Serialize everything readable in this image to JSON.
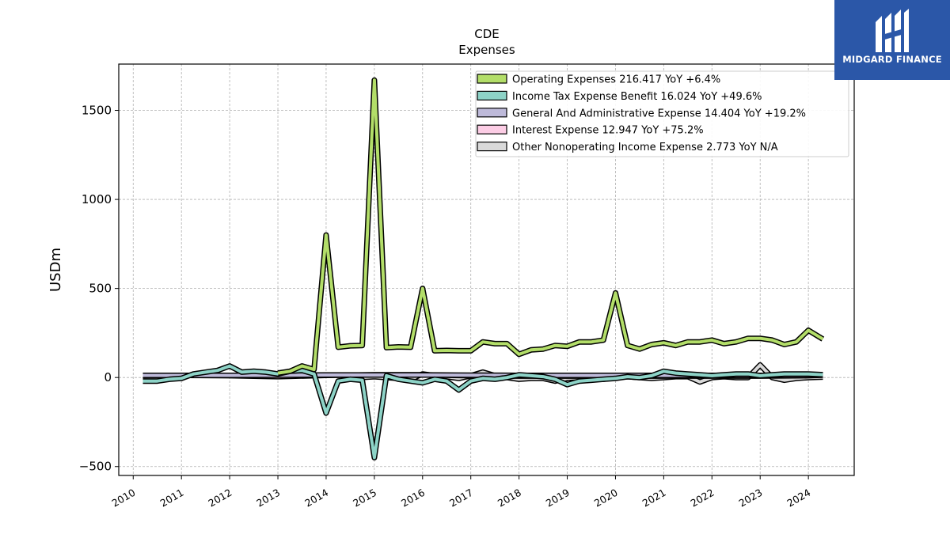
{
  "chart_data": {
    "type": "line",
    "title": "CDE",
    "subtitle": "Expenses",
    "ylabel": "USDm",
    "xlabel": "",
    "xlim": [
      2009.7,
      2024.95
    ],
    "ylim": [
      -550,
      1760
    ],
    "yticks": [
      -500,
      0,
      500,
      1000,
      1500
    ],
    "ytick_labels": [
      "−500",
      "0",
      "500",
      "1000",
      "1500"
    ],
    "xticks": [
      2010,
      2011,
      2012,
      2013,
      2014,
      2015,
      2016,
      2017,
      2018,
      2019,
      2020,
      2021,
      2022,
      2023,
      2024
    ],
    "xtick_labels": [
      "2010",
      "2011",
      "2012",
      "2013",
      "2014",
      "2015",
      "2016",
      "2017",
      "2018",
      "2019",
      "2020",
      "2021",
      "2022",
      "2023",
      "2024"
    ],
    "grid": true,
    "legend_position": "top-right",
    "series": [
      {
        "name": "Operating Expenses",
        "legend": "Operating Expenses  216.417 YoY +6.4%",
        "color": "#b3de69",
        "x": [
          2013.0,
          2013.25,
          2013.5,
          2013.75,
          2014.0,
          2014.25,
          2014.5,
          2014.75,
          2015.0,
          2015.25,
          2015.5,
          2015.75,
          2016.0,
          2016.25,
          2016.5,
          2016.75,
          2017.0,
          2017.25,
          2017.5,
          2017.75,
          2018.0,
          2018.25,
          2018.5,
          2018.75,
          2019.0,
          2019.25,
          2019.5,
          2019.75,
          2020.0,
          2020.25,
          2020.5,
          2020.75,
          2021.0,
          2021.25,
          2021.5,
          2021.75,
          2022.0,
          2022.25,
          2022.5,
          2022.75,
          2023.0,
          2023.25,
          2023.5,
          2023.75,
          2024.0,
          2024.3
        ],
        "y": [
          25,
          35,
          65,
          45,
          800,
          170,
          178,
          180,
          1670,
          168,
          172,
          170,
          500,
          150,
          152,
          150,
          150,
          200,
          190,
          190,
          130,
          155,
          160,
          180,
          175,
          200,
          200,
          210,
          475,
          180,
          160,
          185,
          195,
          180,
          200,
          200,
          210,
          190,
          200,
          220,
          220,
          210,
          185,
          200,
          265,
          216
        ]
      },
      {
        "name": "Income Tax Expense Benefit",
        "legend": "Income Tax Expense Benefit  16.024 YoY +49.6%",
        "color": "#8dd3c7",
        "x": [
          2010.2,
          2010.5,
          2010.75,
          2011.0,
          2011.25,
          2011.5,
          2011.75,
          2012.0,
          2012.25,
          2012.5,
          2012.75,
          2013.0,
          2013.25,
          2013.5,
          2013.75,
          2014.0,
          2014.25,
          2014.5,
          2014.75,
          2015.0,
          2015.25,
          2015.5,
          2015.75,
          2016.0,
          2016.25,
          2016.5,
          2016.75,
          2017.0,
          2017.25,
          2017.5,
          2017.75,
          2018.0,
          2018.25,
          2018.5,
          2018.75,
          2019.0,
          2019.25,
          2019.5,
          2019.75,
          2020.0,
          2020.25,
          2020.5,
          2020.75,
          2021.0,
          2021.25,
          2021.5,
          2021.75,
          2022.0,
          2022.25,
          2022.5,
          2022.75,
          2023.0,
          2023.25,
          2023.5,
          2023.75,
          2024.0,
          2024.3
        ],
        "y": [
          -20,
          -20,
          -10,
          -5,
          20,
          30,
          40,
          65,
          30,
          35,
          30,
          20,
          35,
          40,
          20,
          -200,
          -20,
          -10,
          -15,
          -450,
          10,
          -10,
          -20,
          -30,
          -10,
          -20,
          -70,
          -20,
          -5,
          -10,
          0,
          15,
          10,
          5,
          -10,
          -40,
          -20,
          -15,
          -10,
          -5,
          5,
          0,
          10,
          35,
          25,
          20,
          15,
          10,
          15,
          20,
          20,
          10,
          15,
          20,
          20,
          20,
          16
        ]
      },
      {
        "name": "General And Administrative Expense",
        "legend": "General And Administrative Expense  14.404 YoY +19.2%",
        "color": "#bebada",
        "x": [
          2010.2,
          2011.0,
          2012.0,
          2013.0,
          2014.0,
          2015.0,
          2016.0,
          2017.0,
          2018.0,
          2019.0,
          2020.0,
          2021.0,
          2022.0,
          2023.0,
          2024.0,
          2024.3
        ],
        "y": [
          12,
          12,
          12,
          13,
          14,
          14,
          14,
          13,
          12,
          12,
          12,
          12,
          12,
          12,
          13,
          14.4
        ]
      },
      {
        "name": "Interest Expense",
        "legend": "Interest Expense  12.947 YoY +75.2%",
        "color": "#fccde5",
        "x": [
          2010.2,
          2011.0,
          2012.0,
          2013.0,
          2014.0,
          2015.0,
          2016.0,
          2017.0,
          2018.0,
          2019.0,
          2020.0,
          2021.0,
          2022.0,
          2023.0,
          2024.0,
          2024.3
        ],
        "y": [
          10,
          12,
          10,
          5,
          12,
          15,
          15,
          10,
          8,
          8,
          8,
          8,
          8,
          8,
          10,
          12.9
        ]
      },
      {
        "name": "Other Nonoperating Income Expense",
        "legend": "Other Nonoperating Income Expense  2.773 YoY N/A",
        "color": "#d9d9d9",
        "x": [
          2014.7,
          2015.0,
          2015.25,
          2015.5,
          2015.75,
          2016.0,
          2016.25,
          2016.5,
          2016.75,
          2017.0,
          2017.25,
          2017.5,
          2017.75,
          2018.0,
          2018.25,
          2018.5,
          2018.75,
          2019.0,
          2019.25,
          2019.5,
          2019.75,
          2020.0,
          2020.25,
          2020.5,
          2020.75,
          2021.0,
          2021.25,
          2021.5,
          2021.75,
          2022.0,
          2022.25,
          2022.5,
          2022.75,
          2023.0,
          2023.25,
          2023.5,
          2023.75,
          2024.0,
          2024.3
        ],
        "y": [
          0,
          5,
          0,
          -5,
          -10,
          20,
          10,
          5,
          -5,
          10,
          30,
          10,
          0,
          -10,
          -5,
          -5,
          -20,
          -5,
          0,
          -5,
          -10,
          0,
          5,
          0,
          -5,
          0,
          5,
          5,
          -25,
          0,
          5,
          0,
          0,
          70,
          0,
          -15,
          -5,
          0,
          2.8
        ]
      }
    ]
  },
  "logo": {
    "name": "MIDGARD FINANCE",
    "icon": "midgard-logo-icon"
  }
}
